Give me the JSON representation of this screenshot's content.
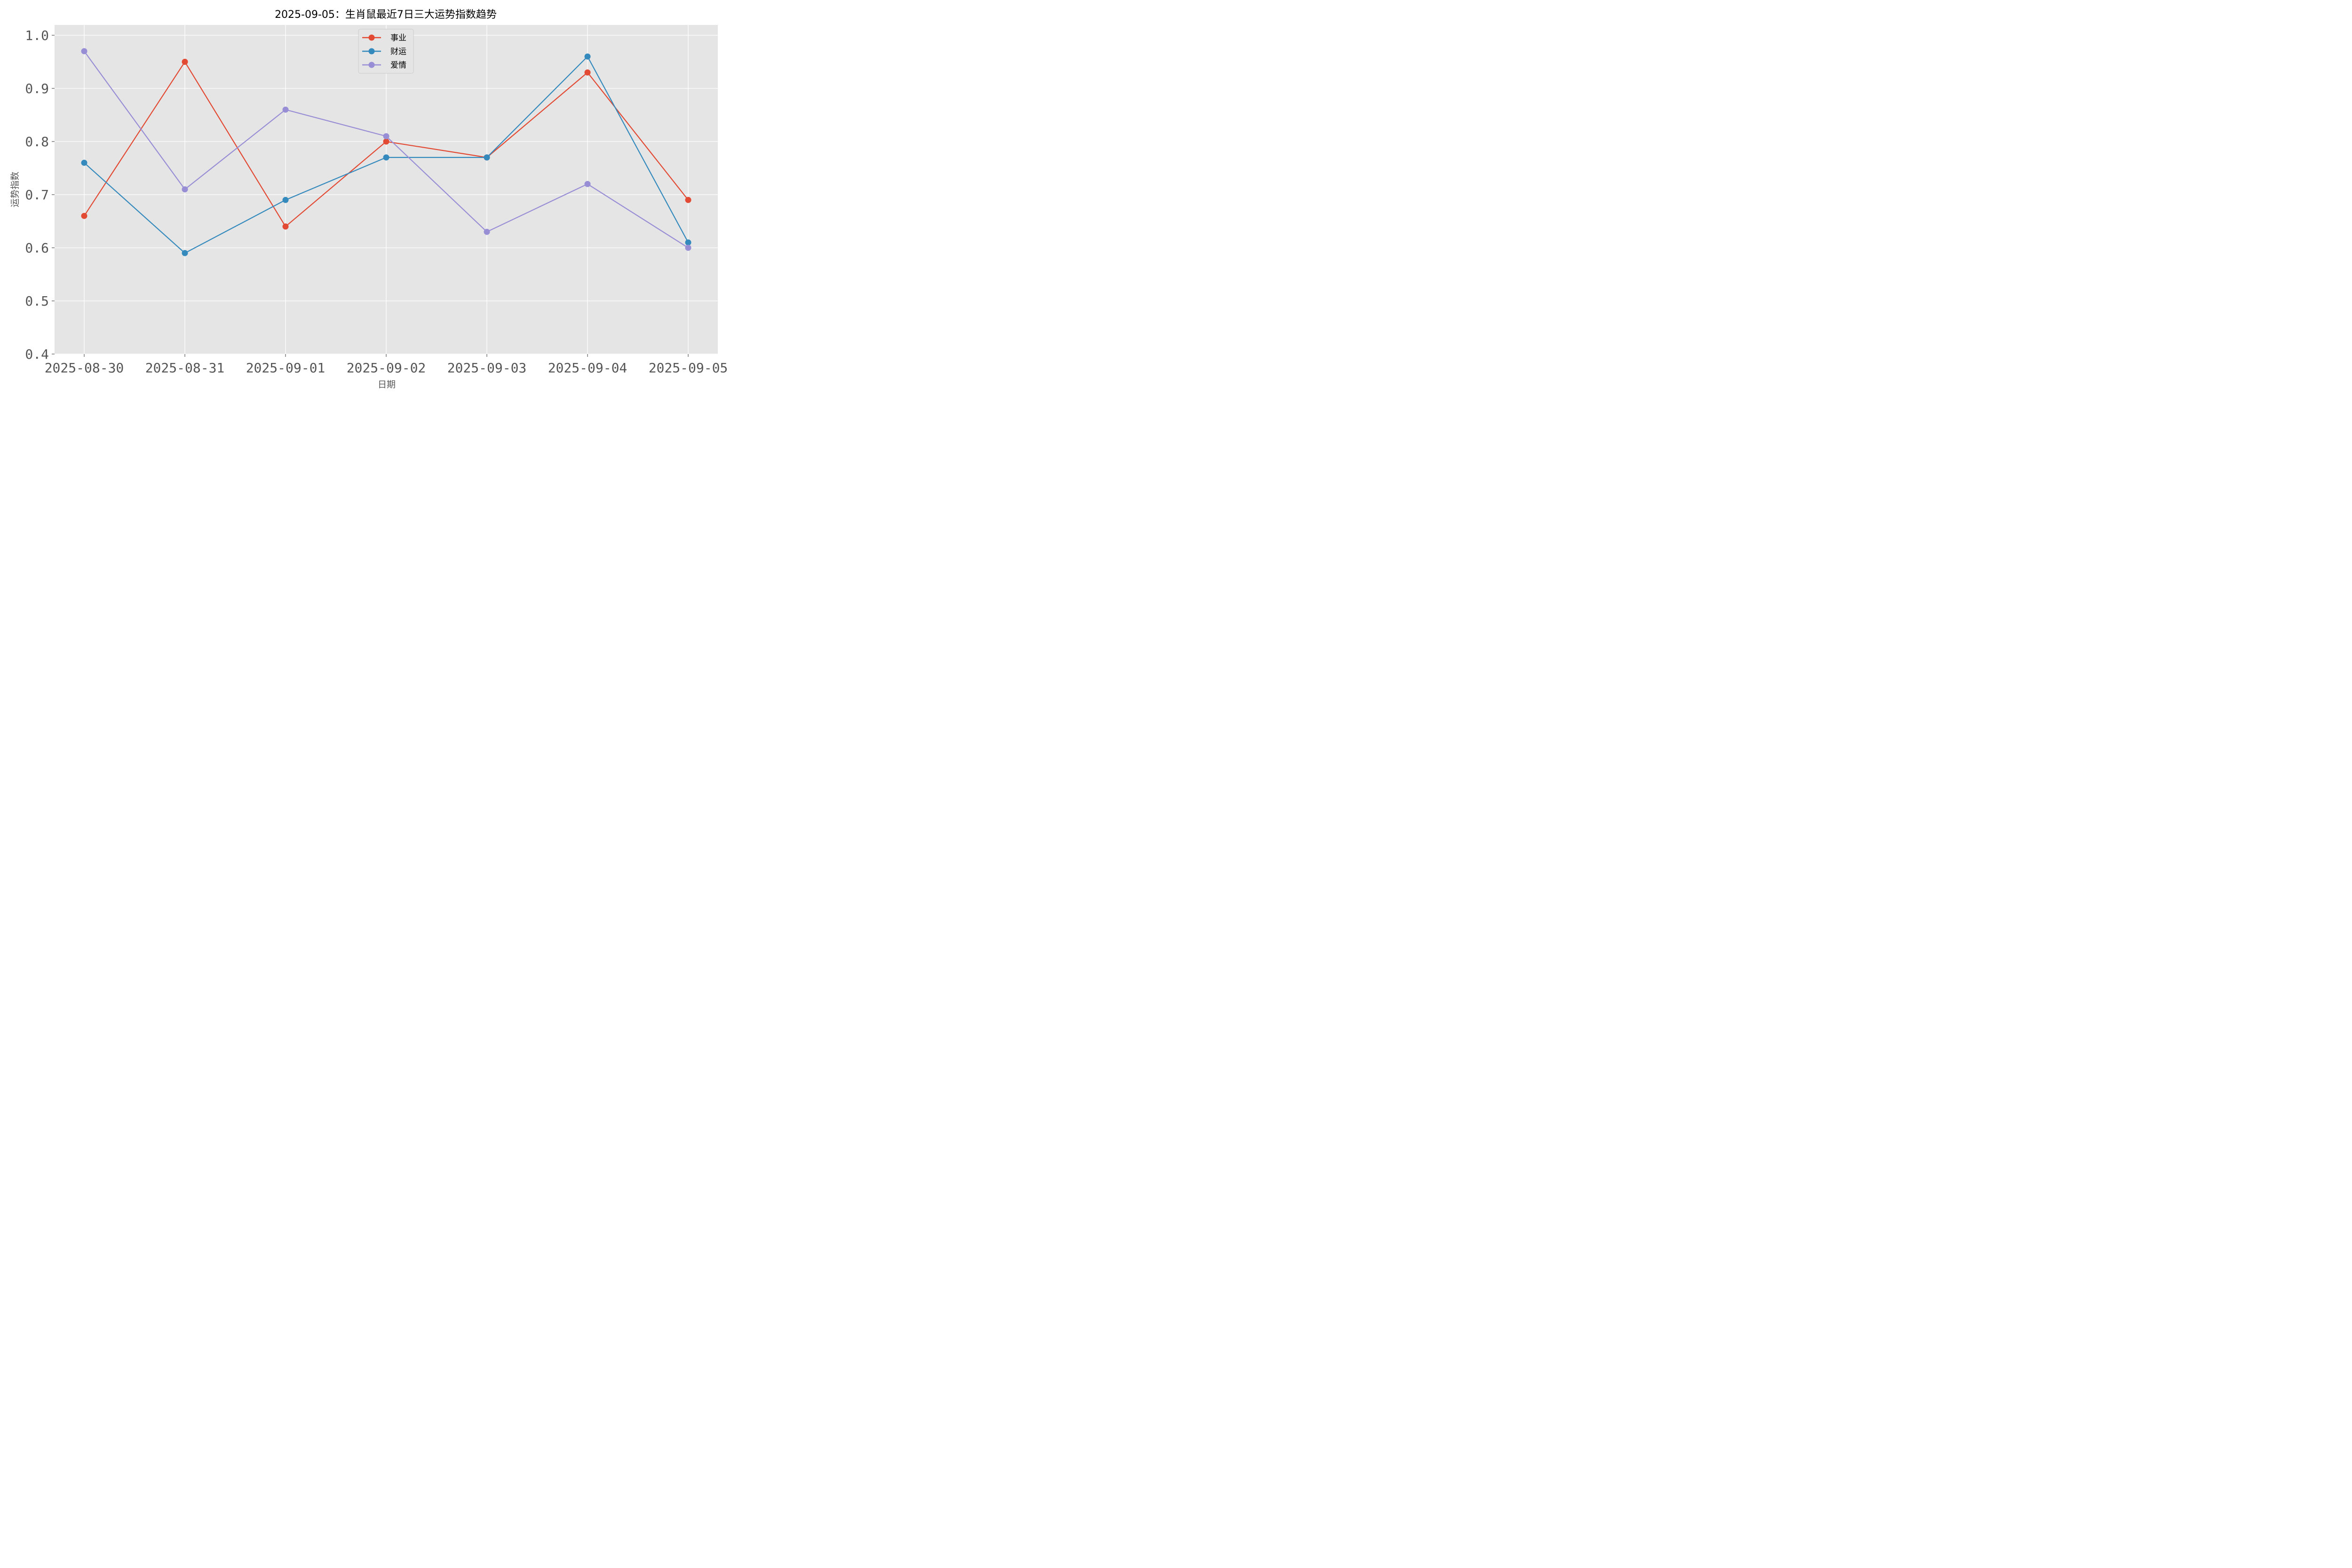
{
  "chart_data": {
    "type": "line",
    "title": "2025-09-05：生肖鼠最近7日三大运势指数趋势",
    "xlabel": "日期",
    "ylabel": "运势指数",
    "categories": [
      "2025-08-30",
      "2025-08-31",
      "2025-09-01",
      "2025-09-02",
      "2025-09-03",
      "2025-09-04",
      "2025-09-05"
    ],
    "ylim": [
      0.4,
      1.02
    ],
    "yticks": [
      "0.4",
      "0.5",
      "0.6",
      "0.7",
      "0.8",
      "0.9",
      "1.0"
    ],
    "grid": true,
    "legend_position": "upper center",
    "series": [
      {
        "name": "事业",
        "color": "#E24A33",
        "values": [
          0.66,
          0.95,
          0.64,
          0.8,
          0.77,
          0.93,
          0.69
        ]
      },
      {
        "name": "财运",
        "color": "#348ABD",
        "values": [
          0.76,
          0.59,
          0.69,
          0.77,
          0.77,
          0.96,
          0.61
        ]
      },
      {
        "name": "爱情",
        "color": "#988ED5",
        "values": [
          0.97,
          0.71,
          0.86,
          0.81,
          0.63,
          0.72,
          0.6
        ]
      }
    ]
  },
  "colors": {
    "plot_bg": "#E5E5E5",
    "grid": "#FFFFFF",
    "tick_text": "#555555"
  }
}
